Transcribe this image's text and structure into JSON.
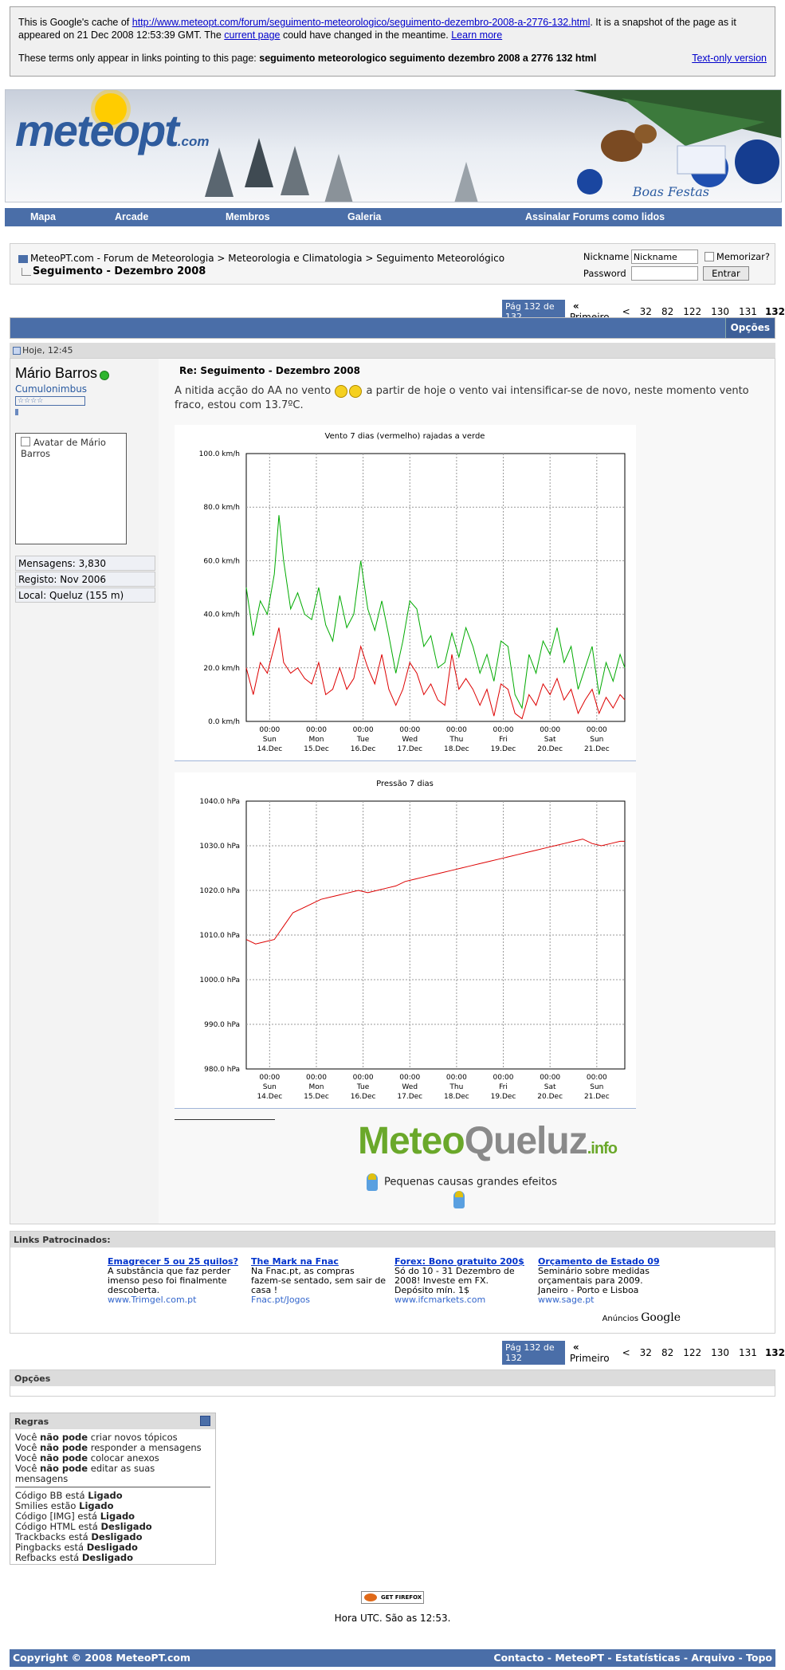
{
  "cache": {
    "intro": "This is Google's cache of",
    "url": "http://www.meteopt.com/forum/seguimento-meteorologico/seguimento-dezembro-2008-a-2776-132.html",
    "after_url": ". It is a snapshot of the page as it appeared on 21 Dec 2008 12:53:39 GMT. The",
    "current_page": "current page",
    "could_change": "could have changed in the meantime.",
    "learn_more": "Learn more",
    "terms_intro": "These terms only appear in links pointing to this page:",
    "terms": "seguimento meteorologico seguimento dezembro 2008 a 2776 132 html",
    "text_only": "Text-only version"
  },
  "banner": {
    "logo": "meteopt",
    "logo_suffix": ".com",
    "greeting": "Boas Festas"
  },
  "nav": [
    "Mapa",
    "Arcade",
    "Membros",
    "Galeria",
    "Assinalar Forums como lidos"
  ],
  "breadcrumb": {
    "path": "MeteoPT.com - Forum de Meteorologia > Meteorologia e Climatologia > Seguimento Meteorológico",
    "thread": "Seguimento - Dezembro 2008"
  },
  "login": {
    "nickname_label": "Nickname",
    "nickname_value": "Nickname",
    "password_label": "Password",
    "remember": "Memorizar?",
    "submit": "Entrar"
  },
  "pager": {
    "current": "Pág 132 de 132",
    "first": "Primeiro",
    "prev": "<",
    "pages": [
      "32",
      "82",
      "122",
      "130",
      "131"
    ],
    "active": "132"
  },
  "post": {
    "options": "Opções",
    "date": "Hoje, 12:45",
    "username": "Mário Barros",
    "user_title": "Cumulonimbus",
    "avatar_alt": "Avatar de Mário Barros",
    "stats": [
      "Mensagens: 3,830",
      "Registo: Nov 2006",
      "Local: Queluz (155 m)"
    ],
    "title": "Re: Seguimento - Dezembro 2008",
    "text_a": "A nitida acção do AA no vento",
    "text_b": "a partir de hoje o vento vai intensificar-se de novo, neste momento vento fraco, estou com 13.7ºC.",
    "signature": {
      "brand_a": "Meteo",
      "brand_b": "Queluz",
      "brand_c": ".info",
      "tagline": "Pequenas causas grandes efeitos"
    }
  },
  "chart_data": [
    {
      "type": "line",
      "title": "Vento 7 dias (vermelho) rajadas a verde",
      "x_ticks": [
        [
          "00:00",
          "Sun",
          "14.Dec"
        ],
        [
          "00:00",
          "Mon",
          "15.Dec"
        ],
        [
          "00:00",
          "Tue",
          "16.Dec"
        ],
        [
          "00:00",
          "Wed",
          "17.Dec"
        ],
        [
          "00:00",
          "Thu",
          "18.Dec"
        ],
        [
          "00:00",
          "Fri",
          "19.Dec"
        ],
        [
          "00:00",
          "Sat",
          "20.Dec"
        ],
        [
          "00:00",
          "Sun",
          "21.Dec"
        ]
      ],
      "y_ticks": [
        "100.0 km/h",
        "80.0 km/h",
        "60.0 km/h",
        "40.0 km/h",
        "20.0 km/h",
        "0.0 km/h"
      ],
      "ylim": [
        0,
        100
      ],
      "xlim_days": [
        -0.5,
        7.6
      ],
      "series": [
        {
          "color": "#00aa00",
          "x": [
            -0.5,
            -0.35,
            -0.2,
            -0.05,
            0.1,
            0.2,
            0.3,
            0.45,
            0.6,
            0.75,
            0.9,
            1.05,
            1.2,
            1.35,
            1.5,
            1.65,
            1.8,
            1.95,
            2.1,
            2.25,
            2.4,
            2.55,
            2.7,
            2.85,
            3.0,
            3.15,
            3.3,
            3.45,
            3.6,
            3.75,
            3.9,
            4.05,
            4.2,
            4.35,
            4.5,
            4.65,
            4.8,
            4.95,
            5.1,
            5.25,
            5.4,
            5.55,
            5.7,
            5.85,
            6.0,
            6.15,
            6.3,
            6.45,
            6.6,
            6.75,
            6.9,
            7.05,
            7.2,
            7.35,
            7.5,
            7.6
          ],
          "y": [
            50,
            32,
            45,
            40,
            55,
            77,
            60,
            42,
            48,
            40,
            38,
            50,
            36,
            30,
            47,
            35,
            40,
            60,
            42,
            34,
            45,
            32,
            18,
            30,
            45,
            42,
            28,
            32,
            20,
            22,
            33,
            24,
            35,
            28,
            18,
            25,
            15,
            30,
            28,
            10,
            5,
            25,
            18,
            30,
            25,
            35,
            22,
            28,
            12,
            20,
            28,
            10,
            22,
            15,
            25,
            20
          ]
        },
        {
          "color": "#dd0000",
          "x": [
            -0.5,
            -0.35,
            -0.2,
            -0.05,
            0.1,
            0.2,
            0.3,
            0.45,
            0.6,
            0.75,
            0.9,
            1.05,
            1.2,
            1.35,
            1.5,
            1.65,
            1.8,
            1.95,
            2.1,
            2.25,
            2.4,
            2.55,
            2.7,
            2.85,
            3.0,
            3.15,
            3.3,
            3.45,
            3.6,
            3.75,
            3.9,
            4.05,
            4.2,
            4.35,
            4.5,
            4.65,
            4.8,
            4.95,
            5.1,
            5.25,
            5.4,
            5.55,
            5.7,
            5.85,
            6.0,
            6.15,
            6.3,
            6.45,
            6.6,
            6.75,
            6.9,
            7.05,
            7.2,
            7.35,
            7.5,
            7.6
          ],
          "y": [
            20,
            10,
            22,
            18,
            28,
            35,
            22,
            18,
            20,
            16,
            14,
            22,
            10,
            12,
            20,
            12,
            16,
            28,
            20,
            14,
            25,
            12,
            6,
            12,
            22,
            18,
            10,
            14,
            8,
            6,
            25,
            12,
            16,
            12,
            6,
            12,
            2,
            14,
            12,
            3,
            1,
            10,
            6,
            14,
            10,
            16,
            8,
            12,
            3,
            8,
            12,
            3,
            9,
            5,
            10,
            8
          ]
        }
      ]
    },
    {
      "type": "line",
      "title": "Pressão 7 dias",
      "x_ticks": [
        [
          "00:00",
          "Sun",
          "14.Dec"
        ],
        [
          "00:00",
          "Mon",
          "15.Dec"
        ],
        [
          "00:00",
          "Tue",
          "16.Dec"
        ],
        [
          "00:00",
          "Wed",
          "17.Dec"
        ],
        [
          "00:00",
          "Thu",
          "18.Dec"
        ],
        [
          "00:00",
          "Fri",
          "19.Dec"
        ],
        [
          "00:00",
          "Sat",
          "20.Dec"
        ],
        [
          "00:00",
          "Sun",
          "21.Dec"
        ]
      ],
      "y_ticks": [
        "1040.0 hPa",
        "1030.0 hPa",
        "1020.0 hPa",
        "1010.0 hPa",
        "1000.0 hPa",
        "990.0 hPa",
        "980.0 hPa"
      ],
      "ylim": [
        980,
        1040
      ],
      "xlim_days": [
        -0.5,
        7.6
      ],
      "series": [
        {
          "color": "#dd0000",
          "x": [
            -0.5,
            -0.3,
            -0.1,
            0.1,
            0.3,
            0.5,
            0.7,
            0.9,
            1.1,
            1.3,
            1.5,
            1.7,
            1.9,
            2.1,
            2.3,
            2.5,
            2.7,
            2.9,
            3.1,
            3.3,
            3.5,
            3.7,
            3.9,
            4.1,
            4.3,
            4.5,
            4.7,
            4.9,
            5.1,
            5.3,
            5.5,
            5.7,
            5.9,
            6.1,
            6.3,
            6.5,
            6.7,
            6.9,
            7.1,
            7.3,
            7.5,
            7.6
          ],
          "y": [
            1009,
            1008,
            1008.5,
            1009,
            1012,
            1015,
            1016,
            1017,
            1018,
            1018.5,
            1019,
            1019.5,
            1020,
            1019.5,
            1020,
            1020.5,
            1021,
            1022,
            1022.5,
            1023,
            1023.5,
            1024,
            1024.5,
            1025,
            1025.5,
            1026,
            1026.5,
            1027,
            1027.5,
            1028,
            1028.5,
            1029,
            1029.5,
            1030,
            1030.5,
            1031,
            1031.5,
            1030.5,
            1030,
            1030.5,
            1031,
            1031
          ]
        }
      ]
    }
  ],
  "links": {
    "header": "Links Patrocinados:",
    "ads": [
      {
        "title": "Emagrecer 5 ou 25 quilos?",
        "desc": "A substância que faz perder imenso peso foi finalmente descoberta.",
        "url": "www.Trimgel.com.pt"
      },
      {
        "title": "The Mark na Fnac",
        "desc": "Na Fnac.pt, as compras fazem-se sentado, sem sair de casa !",
        "url": "Fnac.pt/Jogos"
      },
      {
        "title": "Forex: Bono gratuito 200$",
        "desc": "Só do 10 - 31 Dezembro de 2008! Investe em FX. Depósito mín. 1$",
        "url": "www.ifcmarkets.com"
      },
      {
        "title": "Orçamento de Estado 09",
        "desc": "Seminário sobre medidas orçamentais para 2009. Janeiro - Porto e Lisboa",
        "url": "www.sage.pt"
      }
    ],
    "ads_by": "Anúncios",
    "ads_brand": "Google"
  },
  "options_header": "Opções",
  "rules": {
    "header": "Regras",
    "perms": [
      {
        "a": "Você",
        "b": "não pode",
        "c": "criar novos tópicos"
      },
      {
        "a": "Você",
        "b": "não pode",
        "c": "responder a mensagens"
      },
      {
        "a": "Você",
        "b": "não pode",
        "c": "colocar anexos"
      },
      {
        "a": "Você",
        "b": "não pode",
        "c": "editar as suas mensagens"
      }
    ],
    "settings": [
      {
        "a": "Código BB está",
        "b": "Ligado"
      },
      {
        "a": "Smilies estão",
        "b": "Ligado"
      },
      {
        "a": "Código [IMG] está",
        "b": "Ligado"
      },
      {
        "a": "Código HTML está",
        "b": "Desligado"
      },
      {
        "a": "Trackbacks está",
        "b": "Desligado"
      },
      {
        "a": "Pingbacks está",
        "b": "Desligado"
      },
      {
        "a": "Refbacks está",
        "b": "Desligado"
      }
    ]
  },
  "firefox": "GET FIREFOX",
  "time_note": "Hora UTC. São as 12:53.",
  "footer": {
    "copyright": "Copyright © 2008 MeteoPT.com",
    "links": "Contacto - MeteoPT - Estatísticas - Arquivo - Topo"
  }
}
